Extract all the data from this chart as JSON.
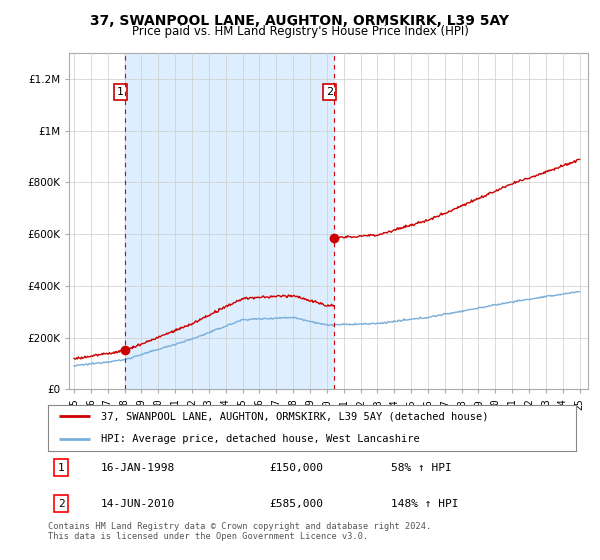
{
  "title": "37, SWANPOOL LANE, AUGHTON, ORMSKIRK, L39 5AY",
  "subtitle": "Price paid vs. HM Land Registry's House Price Index (HPI)",
  "legend_line1": "37, SWANPOOL LANE, AUGHTON, ORMSKIRK, L39 5AY (detached house)",
  "legend_line2": "HPI: Average price, detached house, West Lancashire",
  "transaction1_label": "1",
  "transaction1_date": "16-JAN-1998",
  "transaction1_price": "£150,000",
  "transaction1_hpi": "58% ↑ HPI",
  "transaction2_label": "2",
  "transaction2_date": "14-JUN-2010",
  "transaction2_price": "£585,000",
  "transaction2_hpi": "148% ↑ HPI",
  "footer": "Contains HM Land Registry data © Crown copyright and database right 2024.\nThis data is licensed under the Open Government Licence v3.0.",
  "red_color": "#cc0000",
  "blue_color": "#7aafda",
  "shade_color": "#ddeeff",
  "ylim": [
    0,
    1300000
  ],
  "yticks": [
    0,
    200000,
    400000,
    600000,
    800000,
    1000000,
    1200000
  ],
  "transaction1_x": 1998.05,
  "transaction1_y": 150000,
  "transaction2_x": 2010.45,
  "transaction2_y": 585000,
  "vline1_x": 1998.05,
  "vline2_x": 2010.45,
  "xlim_left": 1994.7,
  "xlim_right": 2025.5
}
